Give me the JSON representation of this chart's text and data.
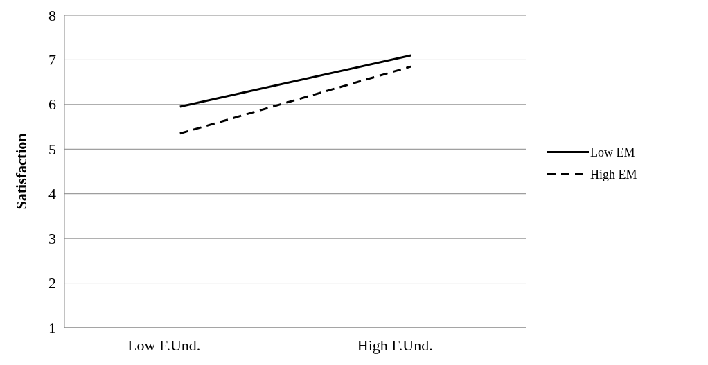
{
  "chart_data": {
    "type": "line",
    "ylabel": "Satisfaction",
    "categories": [
      "Low F.Und.",
      "High F.Und."
    ],
    "series": [
      {
        "name": "Low EM",
        "color": "#000000",
        "values": [
          5.95,
          7.1
        ],
        "line_style": "solid"
      },
      {
        "name": "High EM",
        "color": "#000000",
        "values": [
          5.35,
          6.85
        ],
        "line_style": "dashed"
      }
    ],
    "ylim": [
      1,
      8
    ],
    "yticks": [
      1,
      2,
      3,
      4,
      5,
      6,
      7,
      8
    ],
    "grid": "y",
    "legend": "right",
    "marker": "none"
  }
}
